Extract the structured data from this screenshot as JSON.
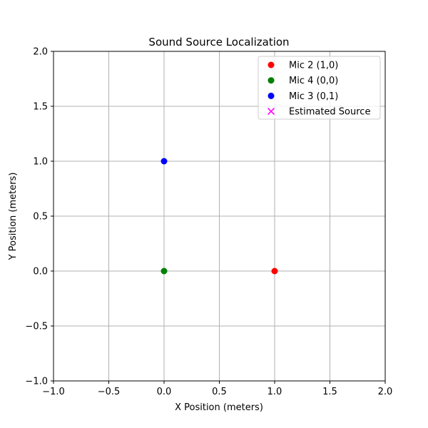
{
  "chart_data": {
    "type": "scatter",
    "title": "Sound Source Localization",
    "xlabel": "X Position (meters)",
    "ylabel": "Y Position (meters)",
    "xlim": [
      -1.0,
      2.0
    ],
    "ylim": [
      -1.0,
      2.0
    ],
    "xticks": [
      -1.0,
      -0.5,
      0.0,
      0.5,
      1.0,
      1.5,
      2.0
    ],
    "yticks": [
      -1.0,
      -0.5,
      0.0,
      0.5,
      1.0,
      1.5,
      2.0
    ],
    "xtick_labels": [
      "−1.0",
      "−0.5",
      "0.0",
      "0.5",
      "1.0",
      "1.5",
      "2.0"
    ],
    "ytick_labels": [
      "−1.0",
      "−0.5",
      "0.0",
      "0.5",
      "1.0",
      "1.5",
      "2.0"
    ],
    "grid": true,
    "legend_position": "top-right",
    "series": [
      {
        "name": "Mic 2 (1,0)",
        "marker": "circle",
        "color": "#ff0000",
        "points": [
          [
            1,
            0
          ]
        ]
      },
      {
        "name": "Mic 4 (0,0)",
        "marker": "circle",
        "color": "#008000",
        "points": [
          [
            0,
            0
          ]
        ]
      },
      {
        "name": "Mic 3 (0,1)",
        "marker": "circle",
        "color": "#0000ff",
        "points": [
          [
            0,
            1
          ]
        ]
      },
      {
        "name": "Estimated Source",
        "marker": "x",
        "color": "#ff00ff",
        "points": []
      }
    ]
  }
}
